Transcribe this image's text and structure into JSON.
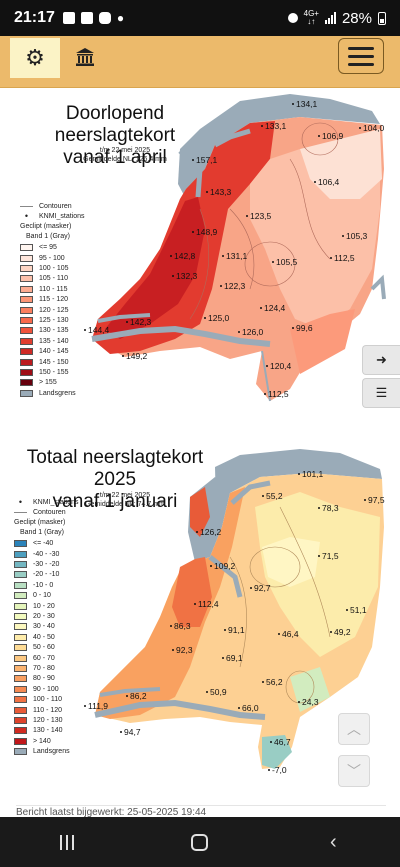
{
  "status_bar": {
    "time": "21:17",
    "battery": "28%",
    "network": "4G+",
    "network_sub": "↓↑"
  },
  "app_bar": {
    "settings_icon": "gear-icon",
    "museum_icon": "museum-icon",
    "menu_icon": "hamburger-icon"
  },
  "map1": {
    "title_line1": "Doorlopend neerslagtekort",
    "title_line2": "vanaf 1 april",
    "subtitle_line1": "t/m 22 mei 2025",
    "subtitle_line2": "Gemiddelde NL: 126.4 mm",
    "legend": {
      "contours": "Contouren",
      "stations": "KNMI_stations",
      "clipped": "Geclipt (masker)",
      "band": "Band 1 (Gray)",
      "classes": [
        {
          "label": "<= 95",
          "color": "#fff5f0"
        },
        {
          "label": "95 - 100",
          "color": "#fee6dc"
        },
        {
          "label": "100 - 105",
          "color": "#fdd5c4"
        },
        {
          "label": "105 - 110",
          "color": "#fcc1ac"
        },
        {
          "label": "110 - 115",
          "color": "#fcab91"
        },
        {
          "label": "115 - 120",
          "color": "#fc9576"
        },
        {
          "label": "120 - 125",
          "color": "#fb7f5f"
        },
        {
          "label": "125 - 130",
          "color": "#f7694c"
        },
        {
          "label": "130 - 135",
          "color": "#ef533c"
        },
        {
          "label": "135 - 140",
          "color": "#e13e30"
        },
        {
          "label": "140 - 145",
          "color": "#cf2a26"
        },
        {
          "label": "145 - 150",
          "color": "#bb1a1e"
        },
        {
          "label": "150 - 155",
          "color": "#9e0d16"
        },
        {
          "label": "> 155",
          "color": "#67000d"
        }
      ],
      "border": "Landsgrens",
      "border_color": "#9aabb8"
    },
    "values": [
      "134,1",
      "133,1",
      "106,9",
      "104,0",
      "157,1",
      "143,3",
      "106,4",
      "123,5",
      "148,9",
      "105,3",
      "131,1",
      "105,5",
      "112,5",
      "142,8",
      "132,3",
      "122,3",
      "124,4",
      "144,4",
      "142,3",
      "125,0",
      "126,0",
      "99,6",
      "149,2",
      "120,4",
      "112,5"
    ]
  },
  "map2": {
    "title_line1": "Totaal neerslagtekort 2025",
    "title_line2": "vanaf 1 januari",
    "subtitle_line1": "t/m 22 mei 2025",
    "subtitle_line2": "Gemiddelde NL: 74.7 mm",
    "legend": {
      "stations": "KNMI_stations",
      "contours": "Contouren",
      "clipped": "Geclipt (masker)",
      "band": "Band 1 (Gray)",
      "classes": [
        {
          "label": "<= -40",
          "color": "#2b83ba"
        },
        {
          "label": "-40 - -30",
          "color": "#4d9fbf"
        },
        {
          "label": "-30 - -20",
          "color": "#74b7c2"
        },
        {
          "label": "-20 - -10",
          "color": "#99cdc4"
        },
        {
          "label": "-10 - 0",
          "color": "#b9dfc3"
        },
        {
          "label": "0 - 10",
          "color": "#d2ecbf"
        },
        {
          "label": "10 - 20",
          "color": "#e5f5bc"
        },
        {
          "label": "20 - 30",
          "color": "#f3fbc0"
        },
        {
          "label": "30 - 40",
          "color": "#fcf8c0"
        },
        {
          "label": "40 - 50",
          "color": "#feecab"
        },
        {
          "label": "50 - 60",
          "color": "#fedc96"
        },
        {
          "label": "60 - 70",
          "color": "#fdc983"
        },
        {
          "label": "70 - 80",
          "color": "#fcb572"
        },
        {
          "label": "80 - 90",
          "color": "#f9a062"
        },
        {
          "label": "90 - 100",
          "color": "#f58a53"
        },
        {
          "label": "100 - 110",
          "color": "#f07244"
        },
        {
          "label": "110 - 120",
          "color": "#e85b38"
        },
        {
          "label": "120 - 130",
          "color": "#dd432c"
        },
        {
          "label": "130 - 140",
          "color": "#d02b21"
        },
        {
          "label": "> 140",
          "color": "#c0171a"
        }
      ],
      "border": "Landsgrens",
      "border_color": "#9aabb8"
    },
    "values": [
      "101,1",
      "55,2",
      "78,3",
      "97,5",
      "126,2",
      "71,5",
      "109,2",
      "92,7",
      "112,4",
      "51,1",
      "86,3",
      "91,1",
      "46,4",
      "49,2",
      "92,3",
      "69,1",
      "56,2",
      "86,2",
      "50,9",
      "111,9",
      "66,0",
      "24,3",
      "94,7",
      "46,7",
      "-7,0"
    ]
  },
  "side_buttons": {
    "next_icon": "chevron-right-circle-icon",
    "list_icon": "list-icon"
  },
  "scroll_buttons": {
    "up_icon": "chevron-up-icon",
    "down_icon": "chevron-down-icon"
  },
  "footer": {
    "updated_text": "Bericht laatst bijgewerkt: 25-05-2025 19:44"
  },
  "nav_bar": {
    "recents_icon": "recents-icon",
    "home_icon": "home-icon",
    "back_icon": "back-icon"
  }
}
